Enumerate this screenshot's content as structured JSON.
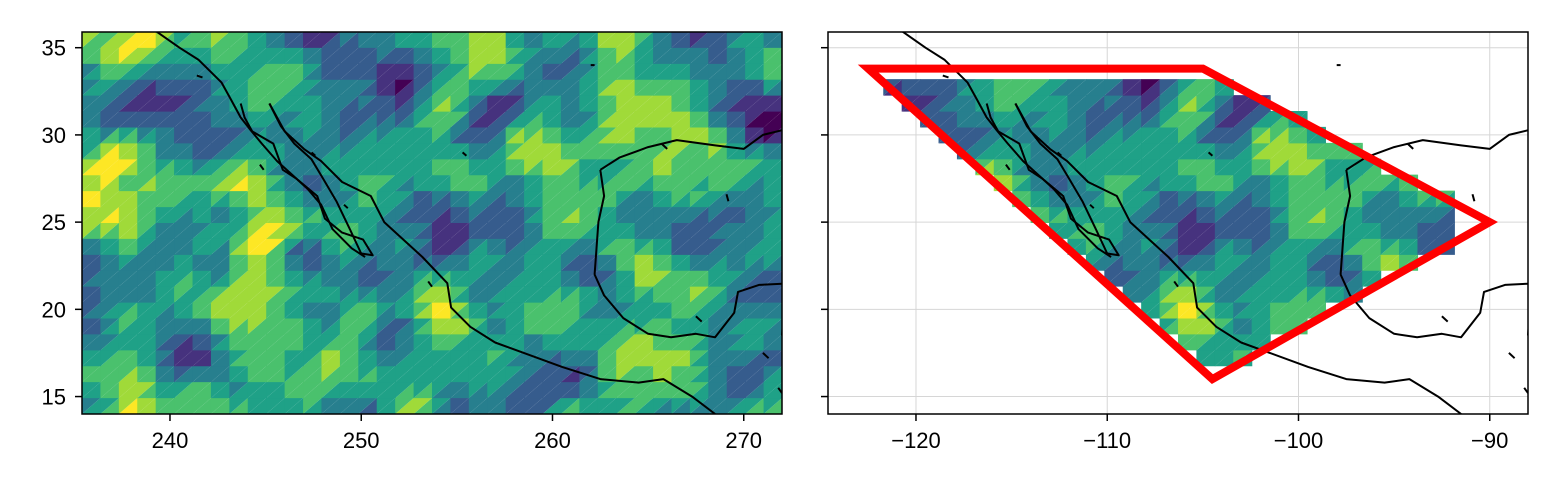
{
  "left_panel": {
    "x_ticks": [
      {
        "value": 240,
        "label": "240"
      },
      {
        "value": 250,
        "label": "250"
      },
      {
        "value": 260,
        "label": "260"
      },
      {
        "value": 270,
        "label": "270"
      }
    ],
    "y_ticks": [
      {
        "value": 15,
        "label": "15"
      },
      {
        "value": 20,
        "label": "20"
      },
      {
        "value": 25,
        "label": "25"
      },
      {
        "value": 30,
        "label": "30"
      },
      {
        "value": 35,
        "label": "35"
      }
    ],
    "xlim": [
      235.4,
      272.0
    ],
    "ylim": [
      14.0,
      35.9
    ],
    "lon_offset": 360,
    "colormap": "viridis",
    "fill": "filled contour, random field"
  },
  "right_panel": {
    "x_ticks": [
      {
        "value": -120,
        "label": "−120"
      },
      {
        "value": -110,
        "label": "−110"
      },
      {
        "value": -100,
        "label": "−100"
      },
      {
        "value": -90,
        "label": "−90"
      }
    ],
    "y_ticks": [
      15,
      20,
      25,
      30,
      35
    ],
    "xlim": [
      -124.6,
      -88.0
    ],
    "ylim": [
      14.0,
      35.9
    ],
    "grid": true,
    "colormap": "viridis",
    "fill": "filled contour clipped to polygon"
  },
  "polygon": {
    "color": "#ff0000",
    "vertices": [
      [
        -122.5,
        33.8
      ],
      [
        -105.0,
        33.8
      ],
      [
        -90.0,
        25.0
      ],
      [
        -104.5,
        16.0
      ]
    ]
  },
  "coastlines": {
    "color": "#000000",
    "mainland_pacific": [
      [
        -120.8,
        36.0
      ],
      [
        -119.5,
        35.0
      ],
      [
        -118.5,
        34.3
      ],
      [
        -117.3,
        33.0
      ],
      [
        -116.8,
        32.0
      ],
      [
        -116.3,
        31.0
      ],
      [
        -115.8,
        30.3
      ],
      [
        -115.2,
        29.5
      ],
      [
        -114.4,
        28.5
      ],
      [
        -113.6,
        27.7
      ],
      [
        -112.8,
        26.9
      ],
      [
        -112.1,
        26.0
      ],
      [
        -111.5,
        24.6
      ],
      [
        -110.5,
        23.5
      ],
      [
        -109.8,
        23.0
      ]
    ],
    "baja_peninsula": [
      [
        -114.8,
        31.8
      ],
      [
        -114.2,
        30.5
      ],
      [
        -113.5,
        29.5
      ],
      [
        -112.6,
        28.6
      ],
      [
        -112.0,
        27.5
      ],
      [
        -111.3,
        26.2
      ],
      [
        -110.6,
        24.6
      ],
      [
        -110.0,
        23.2
      ],
      [
        -109.4,
        23.1
      ],
      [
        -109.9,
        24.0
      ],
      [
        -111.0,
        24.4
      ],
      [
        -111.9,
        25.2
      ],
      [
        -112.3,
        26.5
      ],
      [
        -113.4,
        27.5
      ],
      [
        -114.1,
        28.0
      ],
      [
        -114.6,
        29.5
      ],
      [
        -115.7,
        30.2
      ],
      [
        -116.1,
        31.0
      ],
      [
        -116.3,
        31.8
      ]
    ],
    "mainland_south": [
      [
        -114.8,
        31.8
      ],
      [
        -114.0,
        30.2
      ],
      [
        -113.0,
        29.2
      ],
      [
        -112.1,
        28.5
      ],
      [
        -111.0,
        27.3
      ],
      [
        -109.5,
        26.5
      ],
      [
        -108.8,
        25.0
      ],
      [
        -108.0,
        24.2
      ],
      [
        -106.8,
        23.0
      ],
      [
        -105.5,
        21.5
      ],
      [
        -105.3,
        20.1
      ],
      [
        -104.3,
        19.0
      ],
      [
        -103.0,
        18.1
      ],
      [
        -101.5,
        17.5
      ],
      [
        -99.5,
        16.7
      ],
      [
        -97.5,
        16.0
      ],
      [
        -95.5,
        15.8
      ],
      [
        -94.2,
        16.0
      ],
      [
        -92.7,
        15.0
      ],
      [
        -91.5,
        14.0
      ]
    ],
    "gulf": [
      [
        -97.5,
        28.0
      ],
      [
        -97.3,
        26.5
      ],
      [
        -97.6,
        25.0
      ],
      [
        -97.7,
        23.5
      ],
      [
        -97.8,
        22.0
      ],
      [
        -97.3,
        20.8
      ],
      [
        -96.3,
        19.5
      ],
      [
        -95.0,
        18.6
      ],
      [
        -93.8,
        18.4
      ],
      [
        -92.5,
        18.6
      ],
      [
        -91.5,
        18.4
      ],
      [
        -90.5,
        19.8
      ],
      [
        -90.3,
        21.0
      ],
      [
        -89.2,
        21.4
      ],
      [
        -87.5,
        21.5
      ]
    ],
    "gulf_north": [
      [
        -97.5,
        28.0
      ],
      [
        -96.5,
        28.7
      ],
      [
        -95.0,
        29.3
      ],
      [
        -93.5,
        29.7
      ],
      [
        -91.5,
        29.4
      ],
      [
        -90.0,
        29.2
      ],
      [
        -89.0,
        30.0
      ],
      [
        -87.5,
        30.4
      ]
    ],
    "yucatan_east": [
      [
        -87.6,
        21.4
      ],
      [
        -87.9,
        20.0
      ],
      [
        -88.0,
        18.5
      ]
    ],
    "islands": [
      [
        [
          -118.6,
          33.4
        ],
        [
          -118.3,
          33.3
        ]
      ],
      [
        [
          -115.3,
          28.3
        ],
        [
          -115.1,
          28.0
        ]
      ],
      [
        [
          -112.6,
          29.0
        ],
        [
          -112.4,
          28.8
        ]
      ],
      [
        [
          -110.9,
          26.0
        ],
        [
          -110.7,
          25.8
        ]
      ],
      [
        [
          -106.5,
          21.6
        ],
        [
          -106.3,
          21.3
        ]
      ],
      [
        [
          -104.7,
          29.0
        ],
        [
          -104.5,
          28.8
        ]
      ],
      [
        [
          -98.0,
          34.0
        ],
        [
          -97.8,
          34.0
        ]
      ],
      [
        [
          -94.3,
          29.5
        ],
        [
          -94.0,
          29.2
        ]
      ],
      [
        [
          -90.8,
          26.2
        ],
        [
          -90.9,
          26.6
        ]
      ],
      [
        [
          -92.5,
          19.6
        ],
        [
          -92.2,
          19.3
        ]
      ],
      [
        [
          -89.0,
          17.5
        ],
        [
          -88.7,
          17.2
        ]
      ],
      [
        [
          -88.2,
          15.5
        ],
        [
          -88.0,
          15.2
        ]
      ]
    ]
  }
}
